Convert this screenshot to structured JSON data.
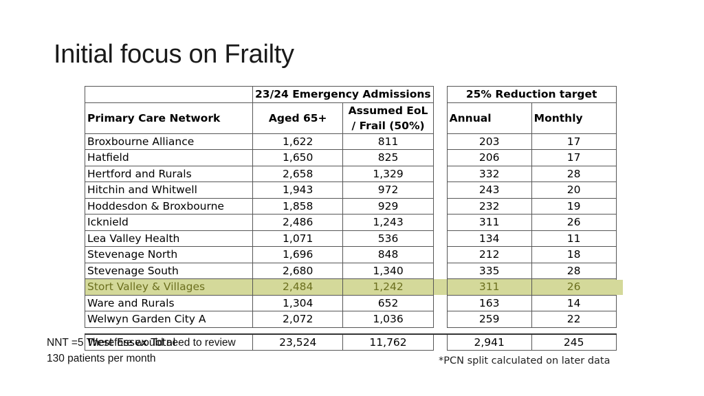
{
  "slide": {
    "title": "Initial focus on Frailty",
    "overlay_note_line1": "NNT =5 Therefore would need to review",
    "overlay_note_line2": "130 patients per month",
    "footnote": "*PCN split calculated on later data"
  },
  "table": {
    "group_headers": {
      "admissions": "23/24 Emergency Admissions",
      "reduction": "25% Reduction target"
    },
    "columns": {
      "pcn": "Primary Care Network",
      "aged": "Aged 65+",
      "eol_line1": "Assumed EoL",
      "eol_line2": "/ Frail (50%)",
      "annual": "Annual",
      "monthly": "Monthly"
    },
    "rows": [
      {
        "name": "Broxbourne Alliance",
        "aged": "1,622",
        "eol": "811",
        "annual": "203",
        "monthly": "17"
      },
      {
        "name": "Hatfield",
        "aged": "1,650",
        "eol": "825",
        "annual": "206",
        "monthly": "17"
      },
      {
        "name": "Hertford and Rurals",
        "aged": "2,658",
        "eol": "1,329",
        "annual": "332",
        "monthly": "28"
      },
      {
        "name": "Hitchin and Whitwell",
        "aged": "1,943",
        "eol": "972",
        "annual": "243",
        "monthly": "20"
      },
      {
        "name": "Hoddesdon & Broxbourne",
        "aged": "1,858",
        "eol": "929",
        "annual": "232",
        "monthly": "19"
      },
      {
        "name": "Icknield",
        "aged": "2,486",
        "eol": "1,243",
        "annual": "311",
        "monthly": "26"
      },
      {
        "name": "Lea Valley Health",
        "aged": "1,071",
        "eol": "536",
        "annual": "134",
        "monthly": "11"
      },
      {
        "name": "Stevenage North",
        "aged": "1,696",
        "eol": "848",
        "annual": "212",
        "monthly": "18"
      },
      {
        "name": "Stevenage South",
        "aged": "2,680",
        "eol": "1,340",
        "annual": "335",
        "monthly": "28"
      },
      {
        "name": "Stort Valley & Villages",
        "aged": "2,484",
        "eol": "1,242",
        "annual": "311",
        "monthly": "26"
      },
      {
        "name": "Ware and Rurals",
        "aged": "1,304",
        "eol": "652",
        "annual": "163",
        "monthly": "14"
      },
      {
        "name": "Welwyn Garden City A",
        "aged": "2,072",
        "eol": "1,036",
        "annual": "259",
        "monthly": "22"
      }
    ],
    "highlighted_row_index": 9,
    "highlight_color": "#d4d99a",
    "total": {
      "name": "West Essex Total",
      "aged": "23,524",
      "eol": "11,762",
      "annual": "2,941",
      "monthly": "245"
    }
  }
}
